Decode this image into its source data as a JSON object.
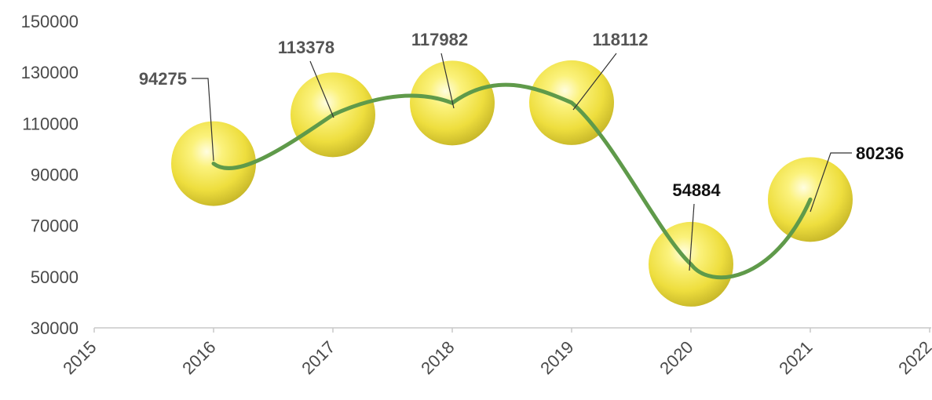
{
  "chart_data": {
    "type": "bubble",
    "y_ticks": [
      "150000",
      "130000",
      "110000",
      "90000",
      "70000",
      "50000",
      "30000"
    ],
    "x_ticks": [
      "2015",
      "2016",
      "2017",
      "2018",
      "2019",
      "2020",
      "2021",
      "2022"
    ],
    "ylim": [
      30000,
      150000
    ],
    "xlim": [
      2015,
      2022
    ],
    "points": [
      {
        "x": 2016,
        "y": 94275,
        "label": "94275"
      },
      {
        "x": 2017,
        "y": 113378,
        "label": "113378"
      },
      {
        "x": 2018,
        "y": 117982,
        "label": "117982"
      },
      {
        "x": 2019,
        "y": 118112,
        "label": "118112"
      },
      {
        "x": 2020,
        "y": 54884,
        "label": "54884"
      },
      {
        "x": 2021,
        "y": 80236,
        "label": "80236"
      }
    ],
    "trendline": "smooth",
    "colors": {
      "bubble": "#f3e65a",
      "trend": "#5f9a4a",
      "axis": "#c8c8c8"
    }
  }
}
